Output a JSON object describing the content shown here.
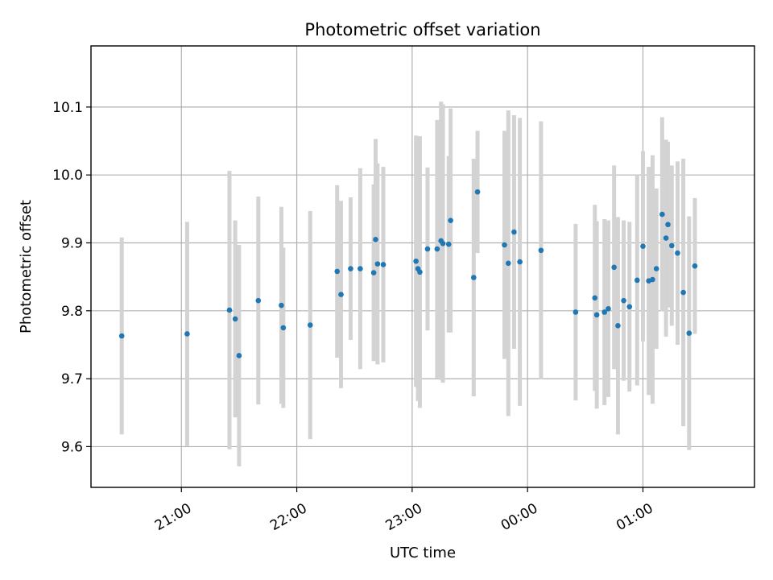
{
  "chart_data": {
    "type": "scatter",
    "title": "Photometric offset variation",
    "xlabel": "UTC time",
    "ylabel": "Photometric offset",
    "x_ticks": [
      "21:00",
      "22:00",
      "23:00",
      "00:00",
      "01:00"
    ],
    "y_ticks": [
      "9.6",
      "9.7",
      "9.8",
      "9.9",
      "10.0",
      "10.1"
    ],
    "xlim": [
      "20:13",
      "01:58"
    ],
    "ylim": [
      9.54,
      10.19
    ],
    "grid": true,
    "colors": {
      "point": "#1f77b4",
      "errorbar": "#d3d3d3"
    },
    "series": [
      {
        "x": [
          "20:29",
          "21:03",
          "21:25",
          "21:28",
          "21:30",
          "21:40",
          "21:52",
          "21:53",
          "22:07",
          "22:21",
          "22:23",
          "22:28",
          "22:33",
          "22:40",
          "22:41",
          "22:42",
          "22:45",
          "23:02",
          "23:03",
          "23:04",
          "23:08",
          "23:13",
          "23:15",
          "23:16",
          "23:19",
          "23:20",
          "23:32",
          "23:34",
          "23:48",
          "23:50",
          "23:53",
          "23:56",
          "00:07",
          "00:25",
          "00:35",
          "00:36",
          "00:40",
          "00:42",
          "00:45",
          "00:47",
          "00:50",
          "00:53",
          "00:57",
          "01:00",
          "01:03",
          "01:05",
          "01:07",
          "01:10",
          "01:12",
          "01:13",
          "01:15",
          "01:18",
          "01:21",
          "01:24",
          "01:27"
        ],
        "y": [
          9.763,
          9.766,
          9.801,
          9.788,
          9.734,
          9.815,
          9.808,
          9.775,
          9.779,
          9.858,
          9.824,
          9.862,
          9.862,
          9.856,
          9.905,
          9.869,
          9.868,
          9.873,
          9.862,
          9.857,
          9.891,
          9.891,
          9.903,
          9.899,
          9.898,
          9.933,
          9.849,
          9.975,
          9.897,
          9.87,
          9.916,
          9.872,
          9.889,
          9.798,
          9.819,
          9.794,
          9.798,
          9.803,
          9.864,
          9.778,
          9.815,
          9.806,
          9.845,
          9.895,
          9.844,
          9.846,
          9.862,
          9.942,
          9.907,
          9.927,
          9.896,
          9.885,
          9.827,
          9.767,
          9.866
        ],
        "yerr": [
          0.145,
          0.165,
          0.205,
          0.145,
          0.163,
          0.153,
          0.145,
          0.118,
          0.168,
          0.127,
          0.138,
          0.105,
          0.148,
          0.13,
          0.148,
          0.148,
          0.144,
          0.185,
          0.195,
          0.2,
          0.12,
          0.19,
          0.205,
          0.205,
          0.13,
          0.165,
          0.175,
          0.09,
          0.168,
          0.225,
          0.172,
          0.212,
          0.19,
          0.13,
          0.137,
          0.138,
          0.137,
          0.13,
          0.15,
          0.16,
          0.118,
          0.125,
          0.155,
          0.14,
          0.168,
          0.183,
          0.118,
          0.143,
          0.145,
          0.122,
          0.118,
          0.135,
          0.197,
          0.172,
          0.1
        ]
      }
    ]
  }
}
